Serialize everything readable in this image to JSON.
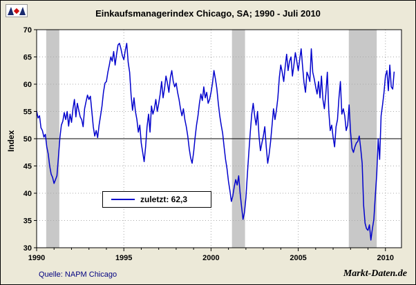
{
  "title": "Einkaufsmanagerindex Chicago, SA; 1990 -  Juli 2010",
  "source_note": "Quelle: NAPM Chicago",
  "watermark": "Markt-Daten.de",
  "legend": {
    "label": "zuletzt: 62,3"
  },
  "colors": {
    "line": "#0000cc",
    "background": "#ece9d8",
    "plot_bg": "#ffffff",
    "band": "#c8c8c8",
    "grid": "#a8a8a8",
    "axis": "#000000"
  },
  "chart_data": {
    "type": "line",
    "title": "Einkaufsmanagerindex Chicago, SA; 1990 -  Juli 2010",
    "xlabel": "",
    "ylabel": "Index",
    "ylim": [
      30,
      70
    ],
    "xlim": [
      1990,
      2010.92
    ],
    "y_ticks": [
      30,
      35,
      40,
      45,
      50,
      55,
      60,
      65,
      70
    ],
    "x_ticks": [
      1990,
      1995,
      2000,
      2005,
      2010
    ],
    "grid": true,
    "legend_position": "inside-bottom-left",
    "reference_line": 50,
    "last_value": 62.3,
    "last_period": "Juli 2010",
    "recession_bands": [
      {
        "from": 1990.55,
        "to": 1991.3
      },
      {
        "from": 2001.2,
        "to": 2001.95
      },
      {
        "from": 2007.9,
        "to": 2009.5
      }
    ],
    "series": [
      {
        "name": "Einkaufsmanagerindex Chicago (SA)",
        "frequency": "monthly",
        "start_year": 1990,
        "values": [
          55.1,
          53.8,
          54.2,
          52.0,
          51.5,
          50.3,
          50.8,
          48.5,
          47.2,
          45.0,
          43.5,
          42.9,
          41.8,
          42.5,
          43.2,
          46.5,
          50.2,
          52.5,
          53.2,
          54.8,
          53.5,
          55.0,
          52.3,
          54.5,
          53.0,
          55.5,
          57.2,
          54.0,
          56.5,
          55.2,
          54.0,
          53.5,
          52.2,
          55.5,
          56.8,
          58.0,
          57.2,
          57.8,
          55.0,
          52.2,
          50.5,
          51.5,
          50.2,
          52.5,
          54.2,
          56.0,
          58.5,
          60.2,
          60.5,
          62.2,
          63.5,
          65.0,
          64.2,
          66.0,
          63.5,
          65.5,
          67.2,
          67.5,
          66.5,
          65.2,
          64.5,
          66.2,
          67.5,
          64.0,
          62.2,
          58.0,
          55.2,
          57.5,
          55.0,
          53.5,
          51.2,
          52.5,
          49.2,
          47.5,
          45.8,
          48.5,
          52.2,
          54.5,
          51.2,
          56.0,
          54.5,
          55.5,
          57.2,
          55.0,
          56.5,
          58.2,
          60.5,
          57.5,
          59.2,
          61.5,
          60.2,
          58.5,
          61.2,
          62.5,
          60.5,
          59.5,
          60.2,
          58.5,
          57.2,
          55.5,
          54.2,
          55.5,
          53.5,
          52.2,
          50.5,
          48.2,
          46.5,
          45.5,
          47.5,
          50.2,
          52.5,
          54.2,
          56.5,
          58.2,
          57.0,
          59.5,
          57.5,
          58.5,
          56.5,
          57.2,
          58.5,
          60.2,
          62.5,
          61.0,
          59.2,
          56.5,
          54.2,
          52.5,
          51.0,
          48.5,
          46.2,
          44.5,
          42.2,
          40.5,
          38.5,
          39.5,
          41.2,
          42.5,
          41.5,
          43.2,
          40.0,
          37.5,
          35.2,
          36.5,
          39.2,
          43.5,
          47.5,
          51.2,
          54.5,
          56.5,
          54.2,
          52.5,
          55.0,
          50.5,
          47.8,
          49.2,
          50.5,
          52.2,
          48.5,
          45.5,
          47.2,
          49.5,
          52.5,
          55.5,
          53.5,
          55.2,
          57.5,
          61.2,
          63.5,
          62.2,
          60.5,
          63.2,
          65.5,
          62.5,
          64.2,
          65.0,
          61.5,
          63.5,
          65.8,
          64.2,
          62.5,
          64.5,
          66.5,
          63.2,
          60.2,
          58.5,
          62.2,
          61.5,
          60.5,
          66.5,
          62.2,
          61.0,
          59.5,
          58.2,
          60.5,
          57.5,
          61.5,
          57.2,
          55.5,
          58.2,
          62.2,
          55.0,
          51.5,
          52.5,
          50.2,
          48.5,
          52.2,
          53.5,
          57.5,
          60.5,
          54.5,
          55.5,
          54.2,
          51.5,
          52.5,
          56.2,
          51.2,
          48.2,
          47.5,
          48.5,
          49.2,
          49.5,
          50.5,
          48.2,
          45.5,
          37.8,
          34.5,
          33.5,
          33.2,
          34.2,
          31.4,
          33.5,
          35.2,
          39.5,
          43.5,
          50.0,
          46.2,
          54.2,
          56.2,
          58.5,
          61.5,
          62.5,
          58.8,
          63.5,
          59.5,
          59.1,
          62.3
        ]
      }
    ]
  }
}
